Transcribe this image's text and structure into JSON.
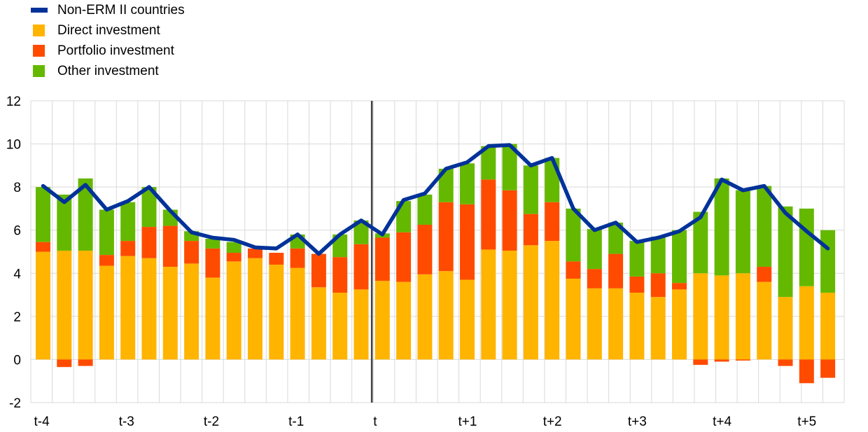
{
  "legend": {
    "items": [
      {
        "label": "Non-ERM II countries",
        "kind": "line",
        "color": "#003299"
      },
      {
        "label": "Direct investment",
        "kind": "box",
        "color": "#FFB400"
      },
      {
        "label": "Portfolio investment",
        "kind": "box",
        "color": "#FF4B00"
      },
      {
        "label": "Other investment",
        "kind": "box",
        "color": "#65B800"
      }
    ]
  },
  "chart_data": {
    "type": "bar",
    "stacked": true,
    "title": "",
    "xlabel": "",
    "ylabel": "",
    "ylim": [
      -2,
      12
    ],
    "yticks": [
      -2,
      0,
      2,
      4,
      6,
      8,
      10,
      12
    ],
    "grid": true,
    "legend_position": "top-left",
    "x_tick_labels": [
      "t-4",
      "t-3",
      "t-2",
      "t-1",
      "t",
      "t+1",
      "t+2",
      "t+3",
      "t+4",
      "t+5"
    ],
    "x_tick_positions": [
      0,
      4,
      8,
      12,
      16,
      20,
      24,
      28,
      32,
      36
    ],
    "vertical_marker_between": [
      15,
      16
    ],
    "n_periods": 38,
    "series": [
      {
        "name": "Direct investment",
        "color": "#FFB400",
        "values": [
          5.0,
          5.05,
          5.05,
          4.35,
          4.8,
          4.7,
          4.3,
          4.45,
          3.8,
          4.55,
          4.7,
          4.4,
          4.25,
          3.35,
          3.1,
          3.25,
          3.65,
          3.6,
          3.95,
          4.1,
          3.7,
          5.1,
          5.05,
          5.3,
          5.5,
          3.75,
          3.3,
          3.3,
          3.1,
          2.9,
          3.25,
          4.0,
          3.9,
          4.0,
          3.6,
          2.9,
          3.4,
          3.1
        ]
      },
      {
        "name": "Portfolio investment",
        "color": "#FF4B00",
        "values": [
          0.45,
          -0.35,
          -0.3,
          0.5,
          0.7,
          1.45,
          1.9,
          1.05,
          1.35,
          0.4,
          0.45,
          0.55,
          0.9,
          1.55,
          1.65,
          2.1,
          2.0,
          2.3,
          2.3,
          3.2,
          3.5,
          3.25,
          2.8,
          1.45,
          1.8,
          0.8,
          0.9,
          1.6,
          0.75,
          1.1,
          0.3,
          -0.25,
          -0.1,
          -0.05,
          0.7,
          -0.3,
          -1.1,
          -0.85
        ]
      },
      {
        "name": "Other investment",
        "color": "#65B800",
        "values": [
          2.55,
          2.6,
          3.35,
          2.1,
          1.8,
          1.85,
          0.75,
          0.45,
          0.45,
          0.5,
          0.0,
          0.0,
          0.65,
          0.0,
          1.05,
          1.1,
          0.2,
          1.45,
          1.4,
          1.55,
          1.9,
          1.55,
          2.15,
          2.25,
          2.05,
          2.45,
          1.85,
          1.45,
          1.65,
          1.7,
          2.45,
          2.85,
          4.5,
          3.85,
          3.75,
          4.2,
          3.6,
          2.9
        ]
      },
      {
        "name": "Non-ERM II countries",
        "color": "#003299",
        "kind": "line",
        "values": [
          8.05,
          7.3,
          8.1,
          6.95,
          7.35,
          8.0,
          6.9,
          5.9,
          5.65,
          5.55,
          5.2,
          5.15,
          5.8,
          4.9,
          5.8,
          6.45,
          5.8,
          7.4,
          7.7,
          8.85,
          9.15,
          9.9,
          9.95,
          9.0,
          9.35,
          7.0,
          6.0,
          6.35,
          5.45,
          5.65,
          5.95,
          6.6,
          8.35,
          7.85,
          8.05,
          6.8,
          5.95,
          5.15
        ]
      }
    ]
  }
}
